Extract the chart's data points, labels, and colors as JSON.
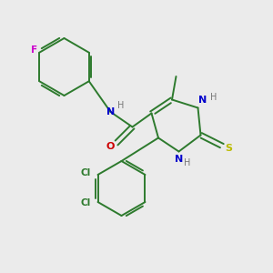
{
  "background_color": "#ebebeb",
  "bond_color": "#2d7a2d",
  "atom_colors": {
    "F": "#cc00cc",
    "N": "#0000cc",
    "O": "#cc0000",
    "S": "#bbbb00",
    "Cl": "#2d7a2d",
    "H": "#777777",
    "C": "#2d7a2d"
  },
  "figsize": [
    3.0,
    3.0
  ],
  "dpi": 100
}
